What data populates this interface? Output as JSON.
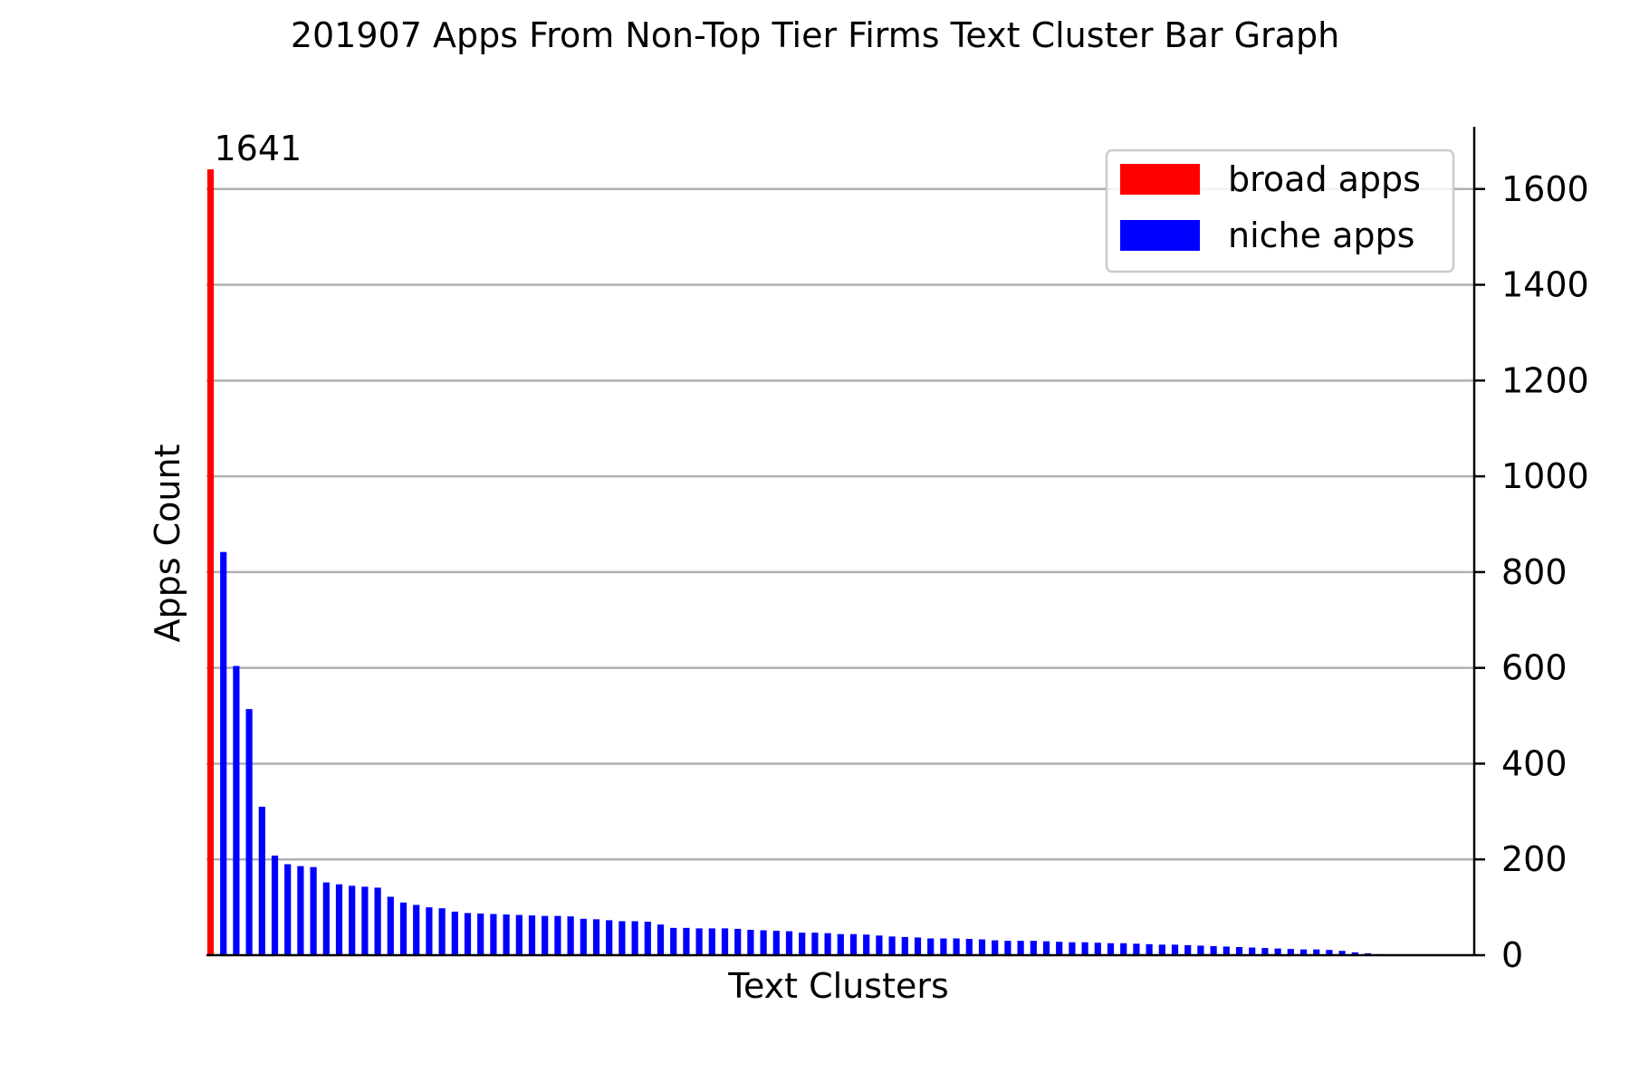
{
  "chart_data": {
    "type": "bar",
    "title": "201907 Apps From Non-Top Tier Firms Text Cluster Bar Graph",
    "xlabel": "Text Clusters",
    "ylabel": "Apps Count",
    "ylim": [
      0,
      1730
    ],
    "yticks": [
      0,
      200,
      400,
      600,
      800,
      1000,
      1200,
      1400,
      1600
    ],
    "y_axis_side": "right",
    "grid": "horizontal",
    "legend_position": "top-right",
    "colors": {
      "broad": "#ff0000",
      "niche": "#0000ff",
      "grid": "#b0b0b0",
      "axis": "#000000"
    },
    "legend": [
      {
        "name": "broad apps",
        "color": "#ff0000"
      },
      {
        "name": "niche apps",
        "color": "#0000ff"
      }
    ],
    "series": [
      {
        "name": "broad apps",
        "values": [
          1641
        ]
      },
      {
        "name": "niche apps",
        "values": [
          842,
          604,
          514,
          310,
          208,
          190,
          186,
          184,
          152,
          148,
          145,
          143,
          141,
          122,
          110,
          105,
          100,
          98,
          91,
          88,
          87,
          86,
          85,
          84,
          83,
          82,
          82,
          81,
          76,
          75,
          73,
          71,
          71,
          70,
          64,
          57,
          57,
          56,
          56,
          56,
          55,
          53,
          52,
          51,
          50,
          47,
          47,
          46,
          44,
          44,
          43,
          41,
          39,
          38,
          37,
          35,
          35,
          35,
          34,
          33,
          31,
          30,
          30,
          30,
          29,
          28,
          27,
          27,
          26,
          25,
          25,
          24,
          23,
          22,
          22,
          21,
          20,
          19,
          18,
          17,
          16,
          15,
          14,
          13,
          12,
          12,
          11,
          9,
          6,
          4,
          2
        ]
      }
    ],
    "annotations": [
      {
        "text": "1641",
        "series": "broad apps",
        "index": 0
      }
    ]
  }
}
